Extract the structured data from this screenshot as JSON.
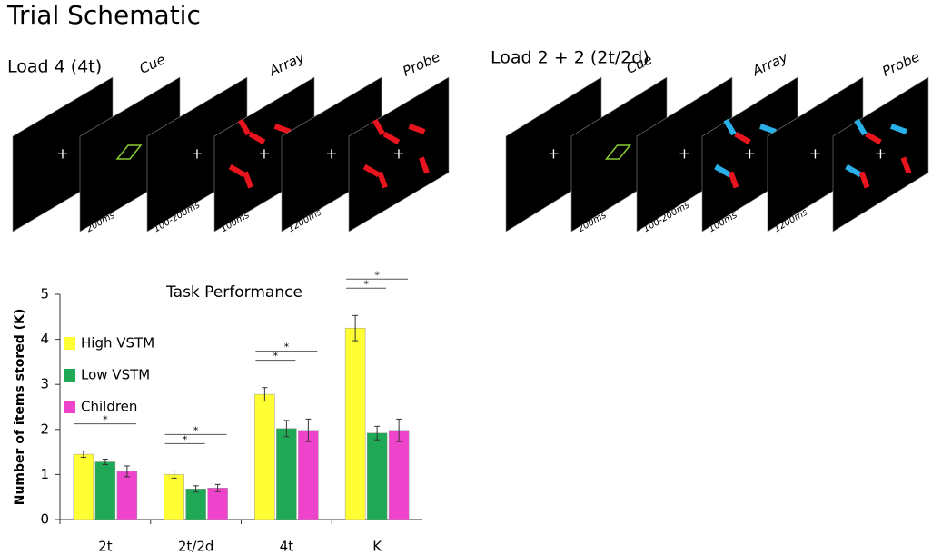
{
  "title": "Trial Schematic",
  "schematics": [
    {
      "label": "Load 4 (4t)",
      "cue": "Cue",
      "array": "Array",
      "probe": "Probe",
      "timings": [
        "200ms",
        "100-200ms",
        "100ms",
        "1200ms"
      ]
    },
    {
      "label": "Load 2 + 2 (2t/2d)",
      "cue": "Cue",
      "array": "Array",
      "probe": "Probe",
      "timings": [
        "200ms",
        "100-200ms",
        "100ms",
        "1200ms"
      ]
    }
  ],
  "chart_data": {
    "type": "bar",
    "title": "Task Performance",
    "y_label": "Number of items stored (K)",
    "categories": [
      "2t",
      "2t/2d",
      "4t",
      "K"
    ],
    "series": [
      {
        "name": "High VSTM",
        "color": "#ffff33",
        "values": [
          1.45,
          1.0,
          2.78,
          4.25
        ],
        "errors": [
          0.07,
          0.08,
          0.15,
          0.28
        ]
      },
      {
        "name": "Low VSTM",
        "color": "#1fa855",
        "values": [
          1.28,
          0.68,
          2.02,
          1.92
        ],
        "errors": [
          0.06,
          0.07,
          0.18,
          0.15
        ]
      },
      {
        "name": "Children",
        "color": "#ee44cc",
        "values": [
          1.07,
          0.7,
          1.98,
          1.98
        ],
        "errors": [
          0.12,
          0.08,
          0.25,
          0.25
        ]
      }
    ],
    "annotations": [
      {
        "text": "*",
        "category": 0,
        "series": [
          0,
          2
        ]
      },
      {
        "text": "*",
        "category": 1,
        "series": [
          0,
          1
        ]
      },
      {
        "text": "*",
        "category": 1,
        "series": [
          0,
          2
        ]
      },
      {
        "text": "*",
        "category": 2,
        "series": [
          0,
          1
        ]
      },
      {
        "text": "*",
        "category": 2,
        "series": [
          0,
          2
        ]
      },
      {
        "text": "*",
        "category": 3,
        "series": [
          0,
          1
        ]
      },
      {
        "text": "*",
        "category": 3,
        "series": [
          0,
          2
        ]
      }
    ],
    "ylim": [
      0,
      5
    ],
    "yticks": [
      0,
      1,
      2,
      3,
      4,
      5
    ]
  }
}
